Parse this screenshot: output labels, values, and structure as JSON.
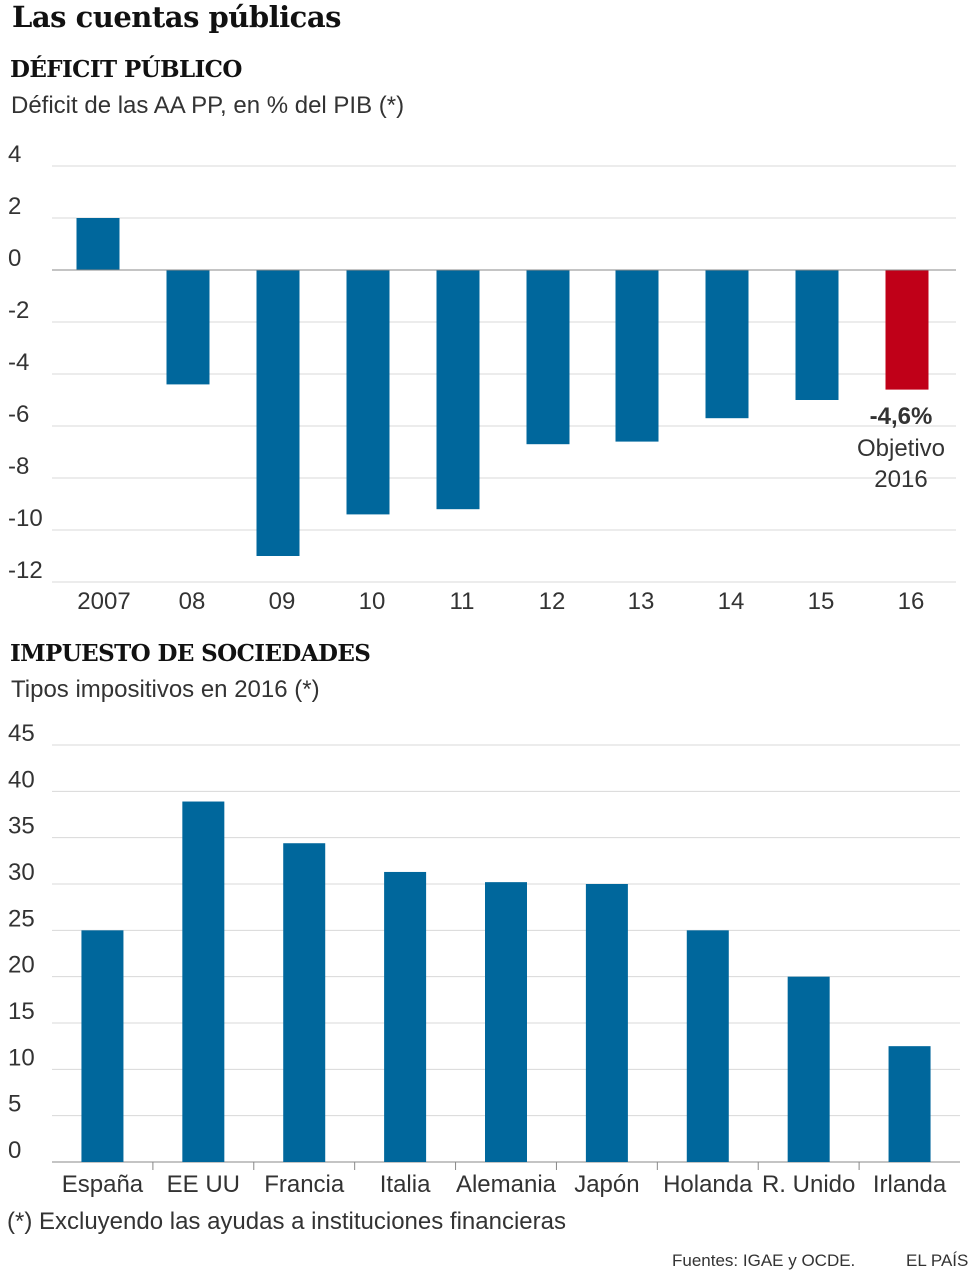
{
  "title": "Las cuentas públicas",
  "footnote": "(*) Excluyendo las ayudas a instituciones financieras",
  "sources": "Fuentes: IGAE y OCDE.",
  "brand": "EL PAÍS",
  "colors": {
    "bar": "#00679c",
    "highlight": "#c00018",
    "grid": "#d8d8d8"
  },
  "chart_data": [
    {
      "type": "bar",
      "title": "DÉFICIT PÚBLICO",
      "subtitle": "Déficit de las AA PP, en % del PIB (*)",
      "categories": [
        "2007",
        "08",
        "09",
        "10",
        "11",
        "12",
        "13",
        "14",
        "15",
        "16"
      ],
      "values": [
        2.0,
        -4.4,
        -11.0,
        -9.4,
        -9.2,
        -6.7,
        -6.6,
        -5.7,
        -5.0,
        -4.6
      ],
      "highlight_index": 9,
      "yticks": [
        "4",
        "2",
        "0",
        "-2",
        "-4",
        "-6",
        "-8",
        "-10",
        "-12"
      ],
      "ylim": [
        -12,
        4
      ],
      "annotation": {
        "value": "-4,6%",
        "line1": "Objetivo",
        "line2": "2016"
      },
      "xlabel": "",
      "ylabel": ""
    },
    {
      "type": "bar",
      "title": "IMPUESTO DE SOCIEDADES",
      "subtitle": "Tipos impositivos en 2016 (*)",
      "categories": [
        "España",
        "EE UU",
        "Francia",
        "Italia",
        "Alemania",
        "Japón",
        "Holanda",
        "R. Unido",
        "Irlanda"
      ],
      "values": [
        25.0,
        38.9,
        34.4,
        31.3,
        30.2,
        30.0,
        25.0,
        20.0,
        12.5
      ],
      "yticks": [
        "45",
        "40",
        "35",
        "30",
        "25",
        "20",
        "15",
        "10",
        "5",
        "0"
      ],
      "ylim": [
        0,
        45
      ],
      "xlabel": "",
      "ylabel": ""
    }
  ]
}
